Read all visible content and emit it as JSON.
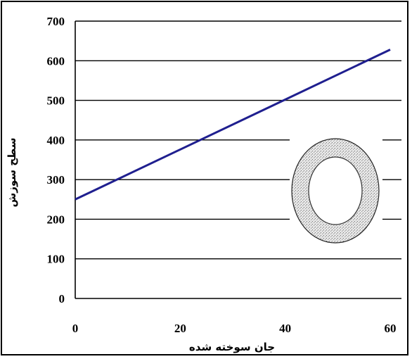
{
  "chart_data": {
    "type": "line",
    "title": "",
    "xlabel": "جان سوخته شده",
    "ylabel": "سطح سوزش",
    "xlim": [
      0,
      60
    ],
    "ylim": [
      0,
      700
    ],
    "x_ticks": [
      "0",
      "20",
      "40",
      "60"
    ],
    "y_ticks": [
      "0",
      "100",
      "200",
      "300",
      "400",
      "500",
      "600",
      "700"
    ],
    "grid": "horizontal",
    "legend": "none",
    "series": [
      {
        "x": [
          0,
          60
        ],
        "y": [
          250,
          628
        ],
        "color": "#1f1f8f"
      }
    ],
    "annotations": [
      {
        "kind": "ring-diagram",
        "fill": "#d0d0d0",
        "stroke": "#222222"
      }
    ]
  }
}
